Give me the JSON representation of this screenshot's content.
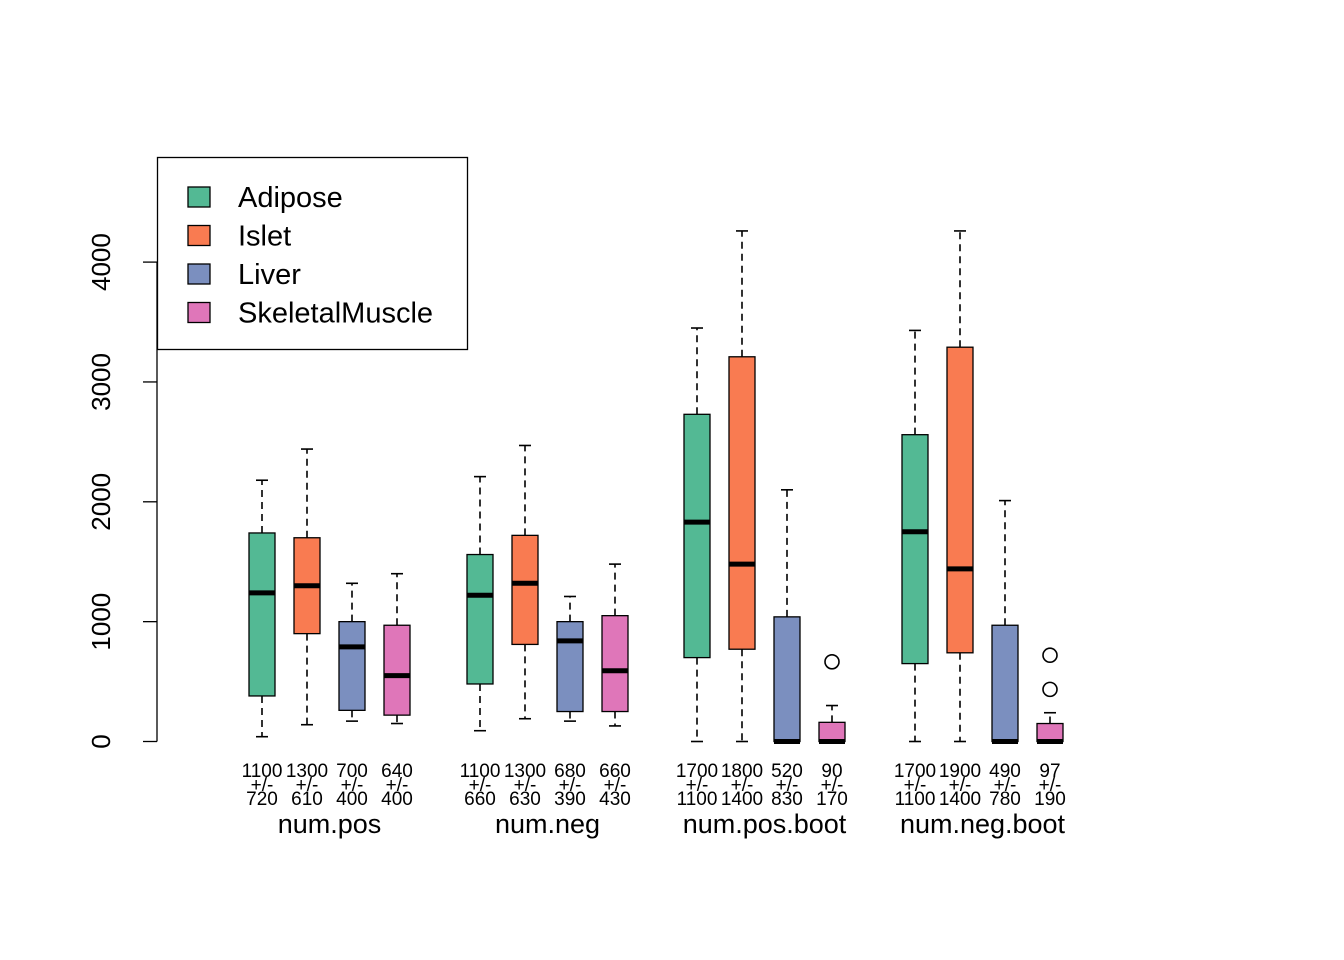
{
  "chart_data": {
    "type": "boxplot",
    "title": "",
    "xlabel": "",
    "ylabel": "",
    "ylim": [
      0,
      4000
    ],
    "yticks": [
      0,
      1000,
      2000,
      3000,
      4000
    ],
    "legend": {
      "position": "top-left",
      "entries": [
        {
          "name": "Adipose",
          "color": "#53b994"
        },
        {
          "name": "Islet",
          "color": "#f97b51"
        },
        {
          "name": "Liver",
          "color": "#7b8fbf"
        },
        {
          "name": "SkeletalMuscle",
          "color": "#df76b9"
        }
      ]
    },
    "groups": [
      {
        "label": "num.pos",
        "boxes": [
          {
            "tissue": "Adipose",
            "whisker_low": 40,
            "q1": 380,
            "median": 1240,
            "q3": 1740,
            "whisker_high": 2180,
            "outliers": [],
            "annotation": [
              "1100",
              "+/-",
              "720"
            ]
          },
          {
            "tissue": "Islet",
            "whisker_low": 140,
            "q1": 900,
            "median": 1300,
            "q3": 1700,
            "whisker_high": 2440,
            "outliers": [],
            "annotation": [
              "1300",
              "+/-",
              "610"
            ]
          },
          {
            "tissue": "Liver",
            "whisker_low": 170,
            "q1": 260,
            "median": 790,
            "q3": 1000,
            "whisker_high": 1320,
            "outliers": [],
            "annotation": [
              "700",
              "+/-",
              "400"
            ]
          },
          {
            "tissue": "SkeletalMuscle",
            "whisker_low": 150,
            "q1": 220,
            "median": 550,
            "q3": 970,
            "whisker_high": 1400,
            "outliers": [],
            "annotation": [
              "640",
              "+/-",
              "400"
            ]
          }
        ]
      },
      {
        "label": "num.neg",
        "boxes": [
          {
            "tissue": "Adipose",
            "whisker_low": 90,
            "q1": 480,
            "median": 1220,
            "q3": 1560,
            "whisker_high": 2210,
            "outliers": [],
            "annotation": [
              "1100",
              "+/-",
              "660"
            ]
          },
          {
            "tissue": "Islet",
            "whisker_low": 190,
            "q1": 810,
            "median": 1320,
            "q3": 1720,
            "whisker_high": 2470,
            "outliers": [],
            "annotation": [
              "1300",
              "+/-",
              "630"
            ]
          },
          {
            "tissue": "Liver",
            "whisker_low": 170,
            "q1": 250,
            "median": 840,
            "q3": 1000,
            "whisker_high": 1210,
            "outliers": [],
            "annotation": [
              "680",
              "+/-",
              "390"
            ]
          },
          {
            "tissue": "SkeletalMuscle",
            "whisker_low": 130,
            "q1": 250,
            "median": 590,
            "q3": 1050,
            "whisker_high": 1480,
            "outliers": [],
            "annotation": [
              "660",
              "+/-",
              "430"
            ]
          }
        ]
      },
      {
        "label": "num.pos.boot",
        "boxes": [
          {
            "tissue": "Adipose",
            "whisker_low": 0,
            "q1": 700,
            "median": 1830,
            "q3": 2730,
            "whisker_high": 3450,
            "outliers": [],
            "annotation": [
              "1700",
              "+/-",
              "1100"
            ]
          },
          {
            "tissue": "Islet",
            "whisker_low": 0,
            "q1": 770,
            "median": 1480,
            "q3": 3210,
            "whisker_high": 4260,
            "outliers": [],
            "annotation": [
              "1800",
              "+/-",
              "1400"
            ]
          },
          {
            "tissue": "Liver",
            "whisker_low": 0,
            "q1": 0,
            "median": 0,
            "q3": 1040,
            "whisker_high": 2100,
            "outliers": [],
            "annotation": [
              "520",
              "+/-",
              "830"
            ]
          },
          {
            "tissue": "SkeletalMuscle",
            "whisker_low": 0,
            "q1": 0,
            "median": 0,
            "q3": 160,
            "whisker_high": 300,
            "outliers": [
              665
            ],
            "annotation": [
              "90",
              "+/-",
              "170"
            ]
          }
        ]
      },
      {
        "label": "num.neg.boot",
        "boxes": [
          {
            "tissue": "Adipose",
            "whisker_low": 0,
            "q1": 650,
            "median": 1750,
            "q3": 2560,
            "whisker_high": 3430,
            "outliers": [],
            "annotation": [
              "1700",
              "+/-",
              "1100"
            ]
          },
          {
            "tissue": "Islet",
            "whisker_low": 0,
            "q1": 740,
            "median": 1440,
            "q3": 3290,
            "whisker_high": 4260,
            "outliers": [],
            "annotation": [
              "1900",
              "+/-",
              "1400"
            ]
          },
          {
            "tissue": "Liver",
            "whisker_low": 0,
            "q1": 0,
            "median": 0,
            "q3": 970,
            "whisker_high": 2010,
            "outliers": [],
            "annotation": [
              "490",
              "+/-",
              "780"
            ]
          },
          {
            "tissue": "SkeletalMuscle",
            "whisker_low": 0,
            "q1": 0,
            "median": 0,
            "q3": 150,
            "whisker_high": 240,
            "outliers": [
              435,
              720
            ],
            "annotation": [
              "97",
              "+/-",
              "190"
            ]
          }
        ]
      }
    ]
  }
}
